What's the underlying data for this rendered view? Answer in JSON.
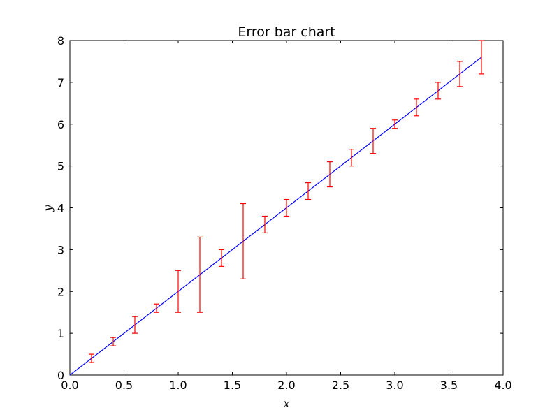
{
  "chart_data": {
    "type": "line",
    "title": "Error bar chart",
    "xlabel": "x",
    "ylabel": "y",
    "xlim": [
      0.0,
      4.0
    ],
    "ylim": [
      0,
      8
    ],
    "grid": false,
    "x_ticks": [
      "0.0",
      "0.5",
      "1.0",
      "1.5",
      "2.0",
      "2.5",
      "3.0",
      "3.5",
      "4.0"
    ],
    "y_ticks": [
      "0",
      "1",
      "2",
      "3",
      "4",
      "5",
      "6",
      "7",
      "8"
    ],
    "series": [
      {
        "color": "#0000ff",
        "points": [
          {
            "x": 0.0,
            "y": 0.0
          },
          {
            "x": 3.8,
            "y": 7.6
          }
        ]
      },
      {
        "color": "#ff0000",
        "error_bars": [
          {
            "x": 0.2,
            "y_low": 0.3,
            "y_high": 0.5
          },
          {
            "x": 0.4,
            "y_low": 0.7,
            "y_high": 0.9
          },
          {
            "x": 0.6,
            "y_low": 1.0,
            "y_high": 1.4
          },
          {
            "x": 0.8,
            "y_low": 1.5,
            "y_high": 1.7
          },
          {
            "x": 1.0,
            "y_low": 1.5,
            "y_high": 2.5
          },
          {
            "x": 1.2,
            "y_low": 1.5,
            "y_high": 3.3
          },
          {
            "x": 1.4,
            "y_low": 2.6,
            "y_high": 3.0
          },
          {
            "x": 1.6,
            "y_low": 2.3,
            "y_high": 4.1
          },
          {
            "x": 1.8,
            "y_low": 3.4,
            "y_high": 3.8
          },
          {
            "x": 2.0,
            "y_low": 3.8,
            "y_high": 4.2
          },
          {
            "x": 2.2,
            "y_low": 4.2,
            "y_high": 4.6
          },
          {
            "x": 2.4,
            "y_low": 4.5,
            "y_high": 5.1
          },
          {
            "x": 2.6,
            "y_low": 5.0,
            "y_high": 5.4
          },
          {
            "x": 2.8,
            "y_low": 5.3,
            "y_high": 5.9
          },
          {
            "x": 3.0,
            "y_low": 5.9,
            "y_high": 6.1
          },
          {
            "x": 3.2,
            "y_low": 6.2,
            "y_high": 6.6
          },
          {
            "x": 3.4,
            "y_low": 6.6,
            "y_high": 7.0
          },
          {
            "x": 3.6,
            "y_low": 6.9,
            "y_high": 7.5
          },
          {
            "x": 3.8,
            "y_low": 7.2,
            "y_high": 8.0
          }
        ]
      }
    ]
  }
}
